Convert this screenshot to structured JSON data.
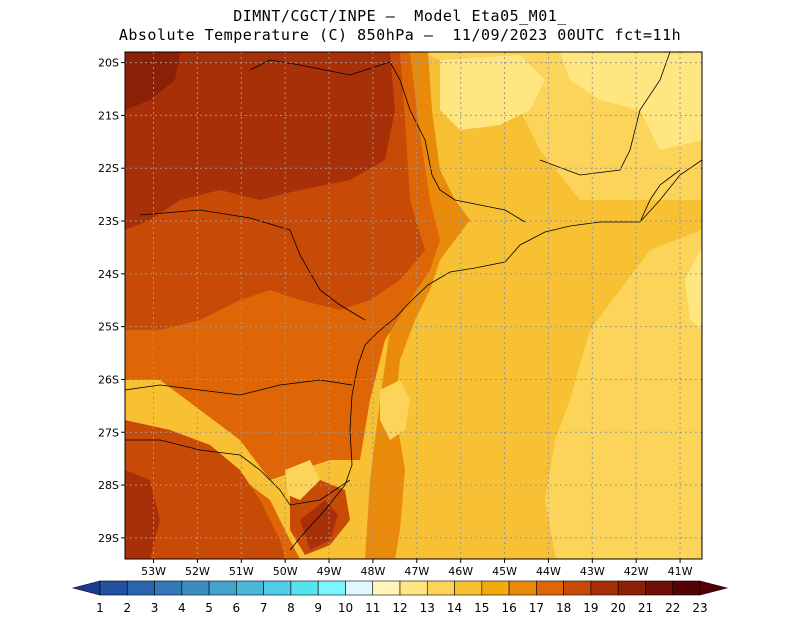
{
  "header": {
    "line1": "DIMNT/CGCT/INPE –  Model Eta05_M01_",
    "line2": "Absolute Temperature (C) 850hPa –  11/09/2023 00UTC fct=11h"
  },
  "map": {
    "lat_labels": [
      "20S",
      "21S",
      "22S",
      "23S",
      "24S",
      "25S",
      "26S",
      "27S",
      "28S",
      "29S"
    ],
    "lon_labels": [
      "53W",
      "52W",
      "51W",
      "50W",
      "49W",
      "48W",
      "47W",
      "46W",
      "45W",
      "44W",
      "43W",
      "42W",
      "41W"
    ],
    "lat_values": [
      -20,
      -21,
      -22,
      -23,
      -24,
      -25,
      -26,
      -27,
      -28,
      -29
    ],
    "lon_values": [
      -53,
      -52,
      -51,
      -50,
      -49,
      -48,
      -47,
      -46,
      -45,
      -44,
      -43,
      -42,
      -41
    ],
    "extent": {
      "lon_min": -53.65,
      "lon_max": -40.5,
      "lat_min": -29.4,
      "lat_max": -19.8
    },
    "grid": true
  },
  "colorbar": {
    "labels": [
      "1",
      "2",
      "3",
      "4",
      "5",
      "6",
      "7",
      "8",
      "9",
      "10",
      "11",
      "12",
      "13",
      "14",
      "15",
      "16",
      "17",
      "18",
      "19",
      "20",
      "21",
      "22",
      "23"
    ],
    "colors": [
      "#1c3a8e",
      "#2250a0",
      "#2b66b0",
      "#3379b8",
      "#3c8cc0",
      "#45a2cc",
      "#4bb8d8",
      "#50cde6",
      "#57e2f0",
      "#7cf5ff",
      "#dff8ff",
      "#fff5b8",
      "#ffe680",
      "#fdd45a",
      "#f8c133",
      "#f3aa0c",
      "#ea8a0a",
      "#de6606",
      "#c84a07",
      "#a83008",
      "#8c2006",
      "#6e1006",
      "#560008"
    ],
    "unit": "C"
  }
}
